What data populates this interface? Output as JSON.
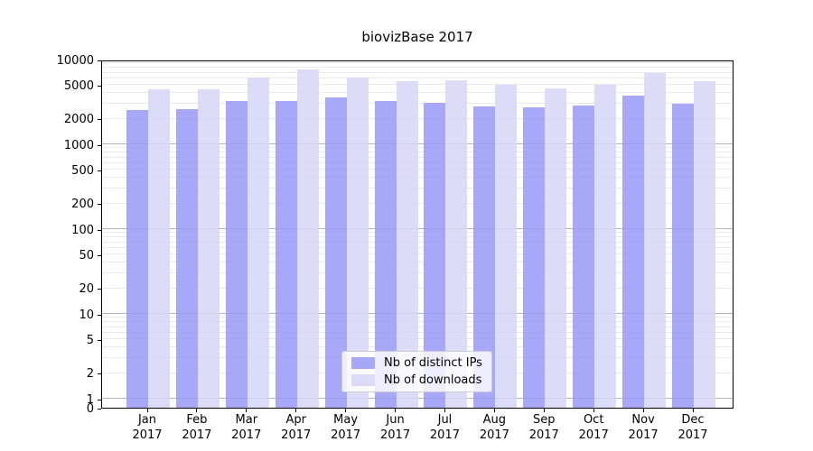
{
  "title": "biovizBase 2017",
  "colors": {
    "distinct_ips": "rgba(153,153,247,0.85)",
    "downloads": "rgba(214,214,247,0.85)",
    "major_grid": "#b5b5b5",
    "minor_grid": "#e9e9e9",
    "axis": "#000000"
  },
  "legend": {
    "items": [
      {
        "label": "Nb of distinct IPs",
        "series": "distinct_ips"
      },
      {
        "label": "Nb of downloads",
        "series": "downloads"
      }
    ]
  },
  "y_axis": {
    "ticks": [
      {
        "label": "10000",
        "value": 10000
      },
      {
        "label": "5000",
        "value": 5000
      },
      {
        "label": "2000",
        "value": 2000
      },
      {
        "label": "1000",
        "value": 1000
      },
      {
        "label": "500",
        "value": 500
      },
      {
        "label": "200",
        "value": 200
      },
      {
        "label": "100",
        "value": 100
      },
      {
        "label": "50",
        "value": 50
      },
      {
        "label": "20",
        "value": 20
      },
      {
        "label": "10",
        "value": 10
      },
      {
        "label": "5",
        "value": 5
      },
      {
        "label": "2",
        "value": 2
      },
      {
        "label": "1",
        "value": 1
      },
      {
        "label": "0",
        "value": 0
      }
    ]
  },
  "x_axis": {
    "months": [
      "Jan",
      "Feb",
      "Mar",
      "Apr",
      "May",
      "Jun",
      "Jul",
      "Aug",
      "Sep",
      "Oct",
      "Nov",
      "Dec"
    ],
    "year": "2017"
  },
  "chart_data": {
    "type": "bar",
    "title": "biovizBase 2017",
    "categories": [
      "Jan 2017",
      "Feb 2017",
      "Mar 2017",
      "Apr 2017",
      "May 2017",
      "Jun 2017",
      "Jul 2017",
      "Aug 2017",
      "Sep 2017",
      "Oct 2017",
      "Nov 2017",
      "Dec 2017"
    ],
    "series": [
      {
        "name": "Nb of distinct IPs",
        "key": "distinct_ips",
        "values": [
          2550,
          2580,
          3260,
          3210,
          3550,
          3220,
          3110,
          2780,
          2750,
          2880,
          3740,
          3000
        ]
      },
      {
        "name": "Nb of downloads",
        "key": "downloads",
        "values": [
          4480,
          4450,
          6170,
          7650,
          6130,
          5550,
          5690,
          5030,
          4520,
          5070,
          6900,
          5600
        ]
      }
    ],
    "yscale": "symlog",
    "ylim": [
      0,
      10000
    ],
    "yticks": [
      0,
      1,
      2,
      5,
      10,
      20,
      50,
      100,
      200,
      500,
      1000,
      2000,
      5000,
      10000
    ],
    "grid": true,
    "legend_position": "lower center"
  }
}
